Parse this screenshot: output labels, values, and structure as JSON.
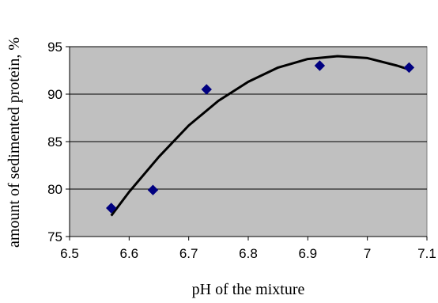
{
  "chart_data": {
    "type": "scatter",
    "title": "",
    "xlabel": "pH of the mixture",
    "ylabel": "amount of sedimented protein, %",
    "xlim": [
      6.5,
      7.1
    ],
    "ylim": [
      75,
      95
    ],
    "x_ticks": [
      6.5,
      6.6,
      6.7,
      6.8,
      6.9,
      7,
      7.1
    ],
    "x_tick_labels": [
      "6.5",
      "6.6",
      "6.7",
      "6.8",
      "6.9",
      "7",
      "7.1"
    ],
    "y_ticks": [
      75,
      80,
      85,
      90,
      95
    ],
    "y_tick_labels": [
      "75",
      "80",
      "85",
      "90",
      "95"
    ],
    "grid": {
      "horizontal": true,
      "vertical": false
    },
    "plot_background": "#c0c0c0",
    "series": [
      {
        "marker": "diamond",
        "color": "#000080",
        "x": [
          6.57,
          6.64,
          6.73,
          6.92,
          7.07
        ],
        "y": [
          78.0,
          79.9,
          90.5,
          93.0,
          92.8
        ]
      }
    ],
    "trendline": {
      "type": "polynomial",
      "color": "#000000",
      "x": [
        6.57,
        6.6,
        6.65,
        6.7,
        6.75,
        6.8,
        6.85,
        6.9,
        6.95,
        7.0,
        7.05,
        7.07
      ],
      "y": [
        77.2,
        79.7,
        83.4,
        86.7,
        89.3,
        91.3,
        92.8,
        93.7,
        94.0,
        93.8,
        93.0,
        92.6
      ]
    }
  }
}
